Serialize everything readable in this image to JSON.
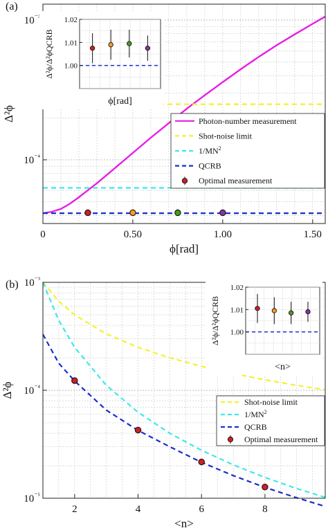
{
  "colors": {
    "photon": "#e61ee6",
    "shot": "#f2f22a",
    "mn2": "#3ee8e8",
    "qcrb": "#1a2ccc",
    "optimal_edge": "#4a0a0a",
    "marker_red": "#c8222a",
    "marker_orange": "#f0a020",
    "marker_green": "#3aa030",
    "marker_purple": "#7a3aa8",
    "grid": "#b8b8b8"
  },
  "chart_data": [
    {
      "id": "a",
      "panel_label": "(a)",
      "type": "line",
      "scale": "log-y",
      "xlabel": "ϕ[rad]",
      "ylabel": "Δ²ϕ",
      "xlim": [
        0,
        1.57
      ],
      "ylim": [
        3.5e-05,
        0.0013
      ],
      "x_ticks": [
        0,
        0.5,
        1.0,
        1.5
      ],
      "x_tick_labels": [
        "0",
        "0.50",
        "1.00",
        "1.50"
      ],
      "y_ticks": [
        0.0001,
        0.001
      ],
      "y_tick_labels": [
        "10⁻⁴",
        "10⁻³"
      ],
      "grid": true,
      "legend_position": "right",
      "series": [
        {
          "name": "Photon-number measurement",
          "style": "solid",
          "color": "photon",
          "x": [
            0,
            0.05,
            0.1,
            0.15,
            0.2,
            0.3,
            0.4,
            0.5,
            0.6,
            0.7,
            0.8,
            0.9,
            1.0,
            1.1,
            1.2,
            1.3,
            1.4,
            1.5,
            1.57
          ],
          "y": [
            4.15e-05,
            4.25e-05,
            4.45e-05,
            4.85e-05,
            5.4e-05,
            6.8e-05,
            8.7e-05,
            0.000112,
            0.000144,
            0.000183,
            0.000232,
            0.00029,
            0.00036,
            0.000445,
            0.000545,
            0.00066,
            0.00079,
            0.00094,
            0.00106
          ]
        },
        {
          "name": "Shot-noise limit",
          "style": "dashed",
          "color": "shot",
          "x": [
            0,
            1.57
          ],
          "y": [
            0.00025,
            0.00025
          ]
        },
        {
          "name": "1/MN²",
          "style": "dashed",
          "color": "mn2",
          "x": [
            0,
            1.57
          ],
          "y": [
            6.3e-05,
            6.3e-05
          ]
        },
        {
          "name": "QCRB",
          "style": "dashed",
          "color": "qcrb",
          "x": [
            0,
            1.57
          ],
          "y": [
            4.15e-05,
            4.15e-05
          ]
        },
        {
          "name": "Optimal measurement",
          "style": "markers",
          "color": "optimal_edge",
          "x": [
            0.25,
            0.5,
            0.75,
            1.0
          ],
          "y": [
            4.18e-05,
            4.18e-05,
            4.18e-05,
            4.18e-05
          ],
          "marker_colors": [
            "marker_red",
            "marker_orange",
            "marker_green",
            "marker_purple"
          ]
        }
      ],
      "inset": {
        "xlabel": "ϕ[rad]",
        "ylabel": "Δ²ϕ/Δ²ϕQCRB",
        "ylim": [
          0.99,
          1.02
        ],
        "y_tick_labels": [
          "1.00",
          "1.01",
          "1.02"
        ],
        "y_ticks": [
          1.0,
          1.01,
          1.02
        ],
        "reference": 1.0,
        "x": [
          1,
          2,
          3,
          4
        ],
        "xlim": [
          0.3,
          4.7
        ],
        "y": [
          1.0075,
          1.009,
          1.0095,
          1.0075
        ],
        "yerr": [
          0.0065,
          0.0065,
          0.006,
          0.0055
        ],
        "marker_colors": [
          "marker_red",
          "marker_orange",
          "marker_green",
          "marker_purple"
        ]
      }
    },
    {
      "id": "b",
      "panel_label": "(b)",
      "type": "line",
      "scale": "log-y",
      "xlabel": "<n>",
      "ylabel": "Δ²ϕ",
      "xlim": [
        1,
        9.9
      ],
      "ylim": [
        1e-05,
        0.001
      ],
      "x_ticks": [
        2,
        4,
        6,
        8
      ],
      "x_tick_labels": [
        "2",
        "4",
        "6",
        "8"
      ],
      "y_ticks": [
        1e-05,
        0.0001,
        0.001
      ],
      "y_tick_labels": [
        "10⁻⁵",
        "10⁻⁴",
        "10⁻³"
      ],
      "grid": true,
      "legend_position": "bottom-right",
      "series": [
        {
          "name": "Shot-noise limit",
          "style": "dashed",
          "color": "shot",
          "x": [
            1,
            1.5,
            2,
            3,
            4,
            5,
            6,
            7,
            8,
            9,
            9.9
          ],
          "y": [
            0.001,
            0.000667,
            0.0005,
            0.000333,
            0.00025,
            0.0002,
            0.000167,
            0.000143,
            0.000125,
            0.000111,
            0.000101
          ]
        },
        {
          "name": "1/MN²",
          "style": "dashed",
          "color": "mn2",
          "x": [
            1,
            1.5,
            2,
            3,
            4,
            5,
            6,
            7,
            8,
            9,
            9.9
          ],
          "y": [
            0.001,
            0.000444,
            0.00025,
            0.000111,
            6.25e-05,
            4e-05,
            2.78e-05,
            2.04e-05,
            1.56e-05,
            1.23e-05,
            1.02e-05
          ]
        },
        {
          "name": "QCRB",
          "style": "dashed",
          "color": "qcrb",
          "x": [
            1,
            1.5,
            2,
            3,
            4,
            5,
            6,
            7,
            8,
            9,
            9.9
          ],
          "y": [
            0.00033,
            0.000178,
            0.000122,
            6.55e-05,
            4.25e-05,
            3e-05,
            2.15e-05,
            1.62e-05,
            1.26e-05,
            1.01e-05,
            8.4e-06
          ]
        },
        {
          "name": "Optimal measurement",
          "style": "markers",
          "color": "optimal_edge",
          "x": [
            2,
            4,
            6,
            8
          ],
          "y": [
            0.000123,
            4.28e-05,
            2.17e-05,
            1.27e-05
          ],
          "marker_colors": [
            "marker_red",
            "marker_red",
            "marker_red",
            "marker_red"
          ]
        }
      ],
      "inset": {
        "xlabel": "<n>",
        "ylabel": "Δ²ϕ/Δ²ϕQCRB",
        "ylim": [
          0.99,
          1.02
        ],
        "y_tick_labels": [
          "1.00",
          "1.01",
          "1.02"
        ],
        "y_ticks": [
          1.0,
          1.01,
          1.02
        ],
        "reference": 1.0,
        "x": [
          1,
          2,
          3,
          4
        ],
        "xlim": [
          0.3,
          4.7
        ],
        "y": [
          1.0105,
          1.0095,
          1.0085,
          1.009
        ],
        "yerr": [
          0.0065,
          0.006,
          0.005,
          0.0045
        ],
        "marker_colors": [
          "marker_red",
          "marker_orange",
          "marker_green",
          "marker_purple"
        ]
      }
    }
  ]
}
